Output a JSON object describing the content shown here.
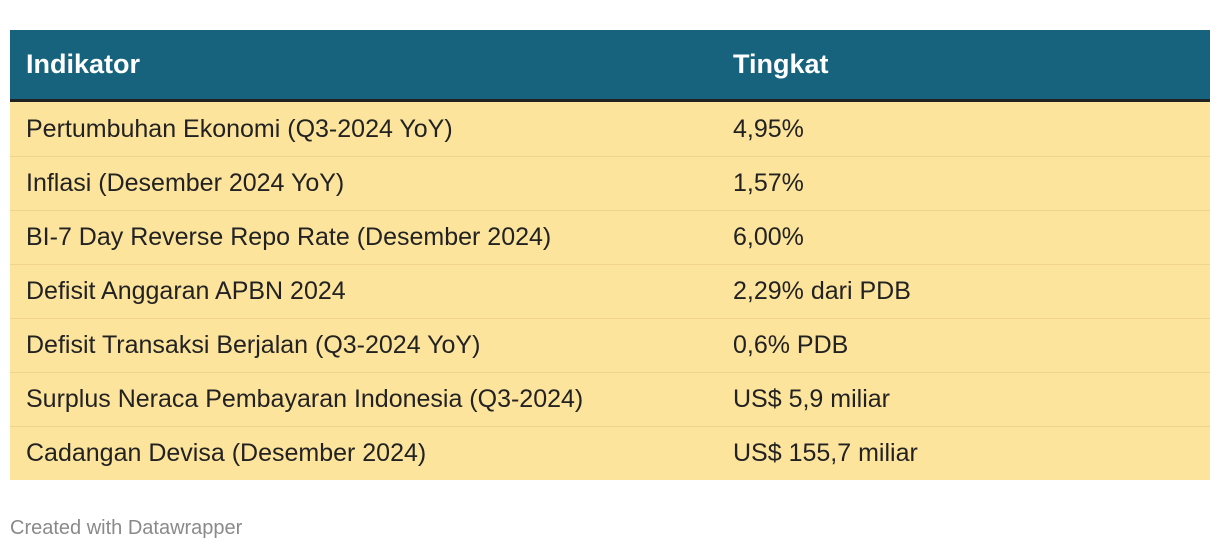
{
  "colors": {
    "header_bg": "#17637d",
    "header_text": "#ffffff",
    "row_bg": "#fde49c",
    "row_text": "#222222",
    "footer_text": "#8a8a8a"
  },
  "chart_data": {
    "type": "table",
    "columns": [
      "Indikator",
      "Tingkat"
    ],
    "rows": [
      {
        "indikator": "Pertumbuhan Ekonomi (Q3-2024 YoY)",
        "tingkat": "4,95%"
      },
      {
        "indikator": "Inflasi (Desember 2024 YoY)",
        "tingkat": "1,57%"
      },
      {
        "indikator": "BI-7 Day Reverse Repo Rate (Desember 2024)",
        "tingkat": "6,00%"
      },
      {
        "indikator": "Defisit Anggaran APBN 2024",
        "tingkat": "2,29% dari PDB"
      },
      {
        "indikator": "Defisit Transaksi Berjalan (Q3-2024 YoY)",
        "tingkat": "0,6% PDB"
      },
      {
        "indikator": "Surplus Neraca Pembayaran Indonesia (Q3-2024)",
        "tingkat": "US$ 5,9 miliar"
      },
      {
        "indikator": "Cadangan Devisa (Desember 2024)",
        "tingkat": "US$ 155,7 miliar"
      }
    ]
  },
  "footer": {
    "credit": "Created with Datawrapper"
  }
}
